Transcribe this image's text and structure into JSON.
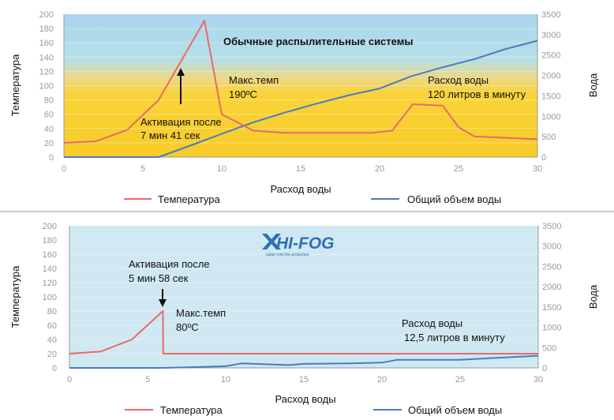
{
  "chart_data": [
    {
      "type": "line",
      "title": "Обычные распылительные системы",
      "xlabel": "Расход воды",
      "ylabel": "Температура",
      "y2label": "Вода",
      "xlim": [
        0,
        30
      ],
      "ylim": [
        0,
        200
      ],
      "y2lim": [
        0,
        3500
      ],
      "xticks": [
        "0",
        "5",
        "10",
        "15",
        "20",
        "25",
        "30"
      ],
      "yticks": [
        "0",
        "20",
        "40",
        "60",
        "80",
        "100",
        "120",
        "140",
        "160",
        "180",
        "200"
      ],
      "y2ticks": [
        "0",
        "500",
        "1000",
        "1500",
        "2000",
        "2500",
        "3000",
        "3500"
      ],
      "legend_position": "bottom",
      "series": [
        {
          "name": "Температура",
          "axis": "left",
          "color": "#e86a6a",
          "x": [
            0,
            2,
            4,
            6,
            8.9,
            10,
            12,
            14,
            16,
            18,
            19.5,
            20.8,
            22.1,
            23,
            24,
            25,
            26,
            28,
            30
          ],
          "y": [
            20,
            22,
            38,
            80,
            191,
            60,
            37,
            34,
            34,
            34,
            34,
            37,
            74,
            73,
            72,
            42,
            29,
            27,
            25
          ]
        },
        {
          "name": "Общий объем воды",
          "axis": "right",
          "color": "#4a7cc0",
          "x": [
            0,
            6,
            8,
            10,
            12,
            14,
            16,
            18,
            20,
            22,
            24,
            26,
            28,
            30
          ],
          "y": [
            0,
            0,
            280,
            570,
            850,
            1090,
            1310,
            1510,
            1680,
            1980,
            2200,
            2400,
            2650,
            2850
          ]
        }
      ],
      "annotations": [
        {
          "lines": [
            "Активация после",
            "7 мин 41 сек"
          ]
        },
        {
          "lines": [
            "Макс.темп",
            "190ºC"
          ]
        },
        {
          "lines": [
            "Расход воды",
            "120 литров в минуту"
          ]
        }
      ]
    },
    {
      "type": "line",
      "title": "",
      "logo": "HI-FOG",
      "logo_tagline": "water mist fire protection",
      "xlabel": "Расход воды",
      "ylabel": "Температура",
      "y2label": "Вода",
      "xlim": [
        0,
        30
      ],
      "ylim": [
        0,
        200
      ],
      "y2lim": [
        0,
        3500
      ],
      "xticks": [
        "0",
        "5",
        "10",
        "15",
        "20",
        "25",
        "30"
      ],
      "yticks": [
        "0",
        "20",
        "40",
        "60",
        "80",
        "100",
        "120",
        "140",
        "160",
        "180",
        "200"
      ],
      "y2ticks": [
        "0",
        "500",
        "1000",
        "1500",
        "2000",
        "2500",
        "3000",
        "3500"
      ],
      "legend_position": "bottom",
      "series": [
        {
          "name": "Температура",
          "axis": "left",
          "color": "#e86a6a",
          "x": [
            0,
            2,
            4,
            5.98,
            6,
            8,
            10,
            15,
            20,
            25,
            30
          ],
          "y": [
            20,
            23,
            40,
            80,
            20,
            20,
            20,
            20,
            20,
            20,
            20
          ]
        },
        {
          "name": "Общий объем воды",
          "axis": "right",
          "color": "#4a7cc0",
          "x": [
            0,
            4,
            6,
            8,
            10,
            11,
            14,
            15,
            18,
            20,
            21,
            25,
            28,
            30
          ],
          "y": [
            0,
            0,
            0,
            20,
            40,
            110,
            70,
            100,
            110,
            130,
            200,
            200,
            260,
            300
          ]
        }
      ],
      "annotations": [
        {
          "lines": [
            "Активация после",
            "5 мин 58 сек"
          ]
        },
        {
          "lines": [
            "Макс.темп",
            "80ºC"
          ]
        },
        {
          "lines": [
            "Расход воды",
            "12,5 литров в минуту"
          ]
        }
      ]
    }
  ]
}
